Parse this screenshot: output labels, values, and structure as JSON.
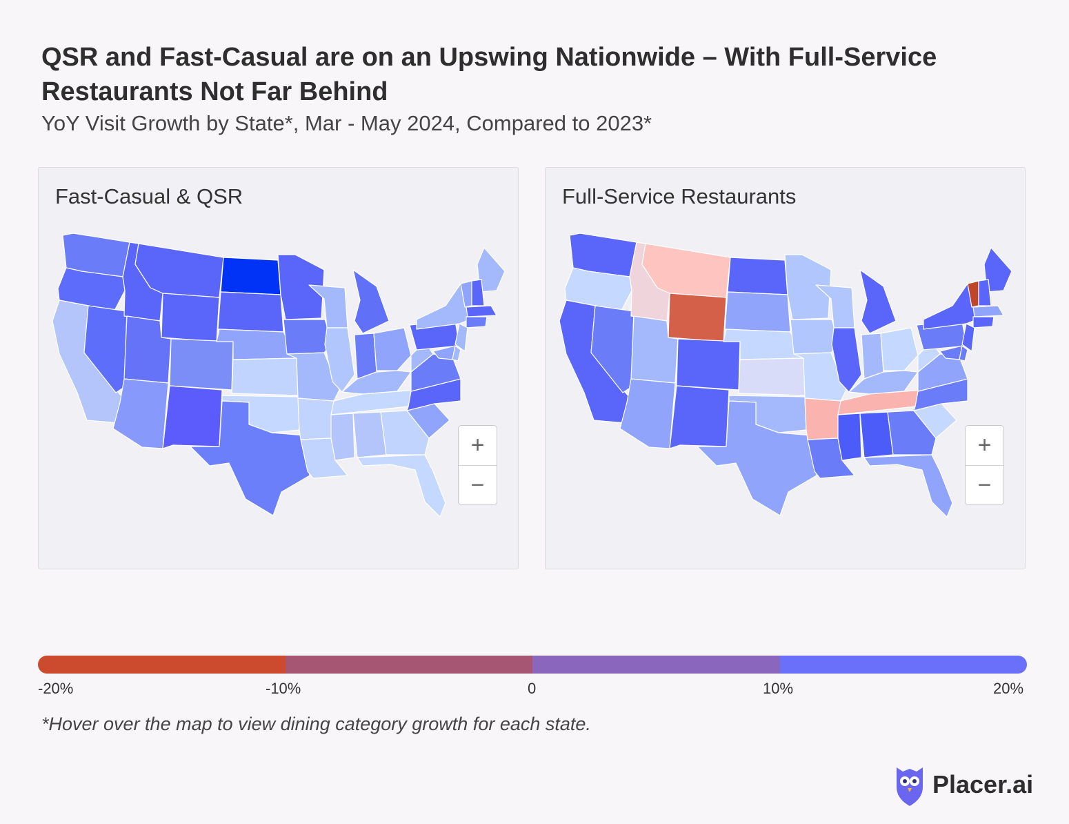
{
  "header": {
    "title": "QSR and Fast-Casual are on an Upswing Nationwide – With Full-Service Restaurants Not Far Behind",
    "subtitle": "YoY Visit Growth by State*, Mar - May  2024, Compared to 2023*"
  },
  "maps": [
    {
      "title": "Fast-Casual & QSR",
      "zoom_in": "+",
      "zoom_out": "−",
      "states": {
        "WA": "#6a7cf8",
        "OR": "#5d6cfa",
        "CA": "#b3c5fb",
        "NV": "#5c6efa",
        "ID": "#5a66fa",
        "MT": "#5a66fa",
        "WY": "#5a66fa",
        "UT": "#6473f8",
        "AZ": "#8799fa",
        "CO": "#7b8ef8",
        "NM": "#5c5cfc",
        "ND": "#0033f5",
        "SD": "#5a66fa",
        "NE": "#8fa4fa",
        "KS": "#c1d4fd",
        "OK": "#c5d8ff",
        "TX": "#6b7ffa",
        "MN": "#5a66fa",
        "IA": "#6a7cf8",
        "MO": "#a3b9fb",
        "AR": "#c1d4fd",
        "LA": "#c1d4fd",
        "WI": "#a3b9fb",
        "IL": "#b0c6fc",
        "MI": "#6071f8",
        "IN": "#6a7cf8",
        "OH": "#8fa4fa",
        "KY": "#a3b9fb",
        "TN": "#c5d8ff",
        "MS": "#b3c5fb",
        "AL": "#b3c5fb",
        "GA": "#c1d4fd",
        "FL": "#c5d8ff",
        "SC": "#8fa4fa",
        "NC": "#5a66fa",
        "VA": "#6a7cf8",
        "WV": "#a3b9fb",
        "PA": "#5a66fa",
        "NY": "#a3b9fb",
        "ME": "#a3b9fb",
        "VT": "#8fa4fa",
        "NH": "#5a66fa",
        "MA": "#5a66fa",
        "NJ": "#a3b9fb",
        "MD": "#8fa4fa",
        "DE": "#a3b9fb",
        "CT": "#6a7cf8"
      }
    },
    {
      "title": "Full-Service Restaurants",
      "zoom_in": "+",
      "zoom_out": "−",
      "states": {
        "WA": "#5a66fa",
        "OR": "#c5d8ff",
        "CA": "#5a66fa",
        "NV": "#6a7cf8",
        "ID": "#f0d4dc",
        "MT": "#fec4c0",
        "WY": "#d4604a",
        "UT": "#a3b9fb",
        "AZ": "#8fa4fa",
        "CO": "#5a66fa",
        "NM": "#5a66fa",
        "ND": "#5a66fa",
        "SD": "#8fa4fa",
        "NE": "#c5d8ff",
        "KS": "#d8dcf8",
        "OK": "#a3b9fb",
        "TX": "#8fa4fa",
        "MN": "#b0c6fc",
        "IA": "#b0c6fc",
        "MO": "#c5d8ff",
        "AR": "#fbb3b0",
        "LA": "#6a7cf8",
        "WI": "#b0c6fc",
        "IL": "#5a66fa",
        "MI": "#5a66fa",
        "IN": "#a3b9fb",
        "OH": "#c5d8ff",
        "KY": "#a3b9fb",
        "TN": "#fbb3b0",
        "MS": "#4b5cf8",
        "AL": "#4b5cf8",
        "GA": "#6a7cf8",
        "FL": "#8fa4fa",
        "SC": "#c5d8ff",
        "NC": "#6a7cf8",
        "VA": "#8fa4fa",
        "WV": "#c5d8ff",
        "PA": "#6a7cf8",
        "NY": "#5a66fa",
        "ME": "#5a66fa",
        "VT": "#c0462a",
        "NH": "#5a66fa",
        "MA": "#8fa4fa",
        "NJ": "#5a66fa",
        "MD": "#6a7cf8",
        "DE": "#6a7cf8",
        "CT": "#5a66fa"
      }
    }
  ],
  "legend": {
    "colors": [
      "#cc4a2e",
      "#a65572",
      "#8a66bd",
      "#6b70fb"
    ],
    "labels": [
      "-20%",
      "-10%",
      "0",
      "10%",
      "20%"
    ]
  },
  "footnote": "*Hover over the map to view dining category growth for each state.",
  "brand": {
    "name": "Placer.ai"
  }
}
